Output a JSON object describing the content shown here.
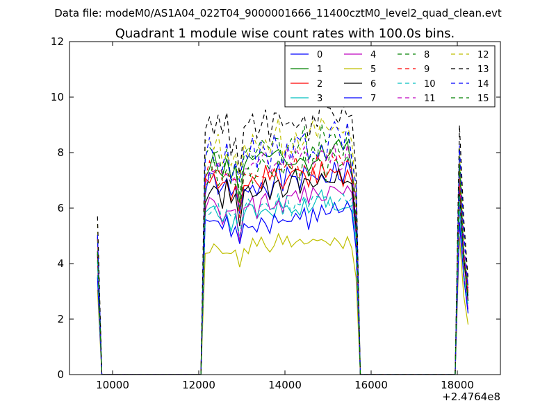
{
  "figure": {
    "suptitle": "Data file: modeM0/AS1A04_022T04_9000001666_11400cztM0_level2_quad_clean.evt"
  },
  "chart_data": {
    "type": "line",
    "title": "Quadrant 1 module wise count rates with 100.0s bins.",
    "xlabel": "",
    "ylabel": "",
    "x_offset_label": "+2.4764e8",
    "xlim": [
      9000,
      19000
    ],
    "ylim": [
      0,
      12
    ],
    "xticks": [
      10000,
      12000,
      14000,
      16000,
      18000
    ],
    "xtick_labels": [
      "10000",
      "12000",
      "14000",
      "16000",
      "18000"
    ],
    "yticks": [
      0,
      2,
      4,
      6,
      8,
      10,
      12
    ],
    "ytick_labels": [
      "0",
      "2",
      "4",
      "6",
      "8",
      "10",
      "12"
    ],
    "grid": false,
    "legend": {
      "placement": "top-right",
      "columns": 4
    },
    "x": [
      9650,
      9750,
      9850,
      9950,
      10050,
      10150,
      10250,
      10350,
      10450,
      10550,
      10650,
      10750,
      10850,
      10950,
      11050,
      11150,
      11250,
      11350,
      11450,
      11550,
      11650,
      11750,
      11850,
      11950,
      12050,
      12150,
      12250,
      12350,
      12450,
      12550,
      12650,
      12750,
      12850,
      12950,
      13050,
      13150,
      13250,
      13350,
      13450,
      13550,
      13650,
      13750,
      13850,
      13950,
      14050,
      14150,
      14250,
      14350,
      14450,
      14550,
      14650,
      14750,
      14850,
      14950,
      15050,
      15150,
      15250,
      15350,
      15450,
      15550,
      15650,
      15750,
      15850,
      15950,
      16050,
      16150,
      16250,
      16350,
      16450,
      16550,
      16650,
      16750,
      16850,
      16950,
      17050,
      17150,
      17250,
      17350,
      17450,
      17550,
      17650,
      17750,
      17850,
      17950,
      18050,
      18150,
      18250
    ],
    "series": [
      {
        "name": "0",
        "color": "#0000ff",
        "dash": "solid",
        "scale": 0.92,
        "seed": 1
      },
      {
        "name": "1",
        "color": "#008000",
        "dash": "solid",
        "scale": 1.03,
        "seed": 2
      },
      {
        "name": "2",
        "color": "#ff0000",
        "dash": "solid",
        "scale": 0.935,
        "seed": 3
      },
      {
        "name": "3",
        "color": "#00bfbf",
        "dash": "solid",
        "scale": 0.79,
        "seed": 4
      },
      {
        "name": "4",
        "color": "#bf00bf",
        "dash": "solid",
        "scale": 0.82,
        "seed": 5
      },
      {
        "name": "5",
        "color": "#bfbf00",
        "dash": "solid",
        "scale": 0.62,
        "seed": 6
      },
      {
        "name": "6",
        "color": "#000000",
        "dash": "solid",
        "scale": 0.9,
        "seed": 7
      },
      {
        "name": "7",
        "color": "#0000ff",
        "dash": "solid",
        "scale": 0.74,
        "seed": 8
      },
      {
        "name": "8",
        "color": "#008000",
        "dash": "dashed",
        "scale": 1.07,
        "seed": 9
      },
      {
        "name": "9",
        "color": "#ff0000",
        "dash": "dashed",
        "scale": 0.98,
        "seed": 10
      },
      {
        "name": "10",
        "color": "#00bfbf",
        "dash": "dashed",
        "scale": 0.81,
        "seed": 11
      },
      {
        "name": "11",
        "color": "#bf00bf",
        "dash": "dashed",
        "scale": 1.0,
        "seed": 12
      },
      {
        "name": "12",
        "color": "#bfbf00",
        "dash": "dashed",
        "scale": 1.12,
        "seed": 13
      },
      {
        "name": "13",
        "color": "#000000",
        "dash": "dashed",
        "scale": 1.2,
        "seed": 14
      },
      {
        "name": "14",
        "color": "#0000ff",
        "dash": "dashed",
        "scale": 1.08,
        "seed": 15
      },
      {
        "name": "15",
        "color": "#008000",
        "dash": "dashed",
        "scale": 0.97,
        "seed": 16
      }
    ],
    "base_profile": [
      4.8,
      0,
      0,
      0,
      0,
      0,
      0,
      0,
      0,
      0,
      0,
      0,
      0,
      0,
      0,
      0,
      0,
      0,
      0,
      0,
      0,
      0,
      0,
      0,
      0,
      7.2,
      7.5,
      7.6,
      7.4,
      7.0,
      7.5,
      6.8,
      7.3,
      6.1,
      7.1,
      7.4,
      7.5,
      7.2,
      7.6,
      7.7,
      7.3,
      7.6,
      7.8,
      7.4,
      7.7,
      7.5,
      7.8,
      7.6,
      7.9,
      7.4,
      7.8,
      7.7,
      8.0,
      7.6,
      7.9,
      8.0,
      7.8,
      7.7,
      8.0,
      7.6,
      6.0,
      0,
      0,
      0,
      0,
      0,
      0,
      0,
      0,
      0,
      0,
      0,
      0,
      0,
      0,
      0,
      0,
      0,
      0,
      0,
      0,
      0,
      0,
      0,
      7.6,
      4.5,
      3.0
    ]
  }
}
